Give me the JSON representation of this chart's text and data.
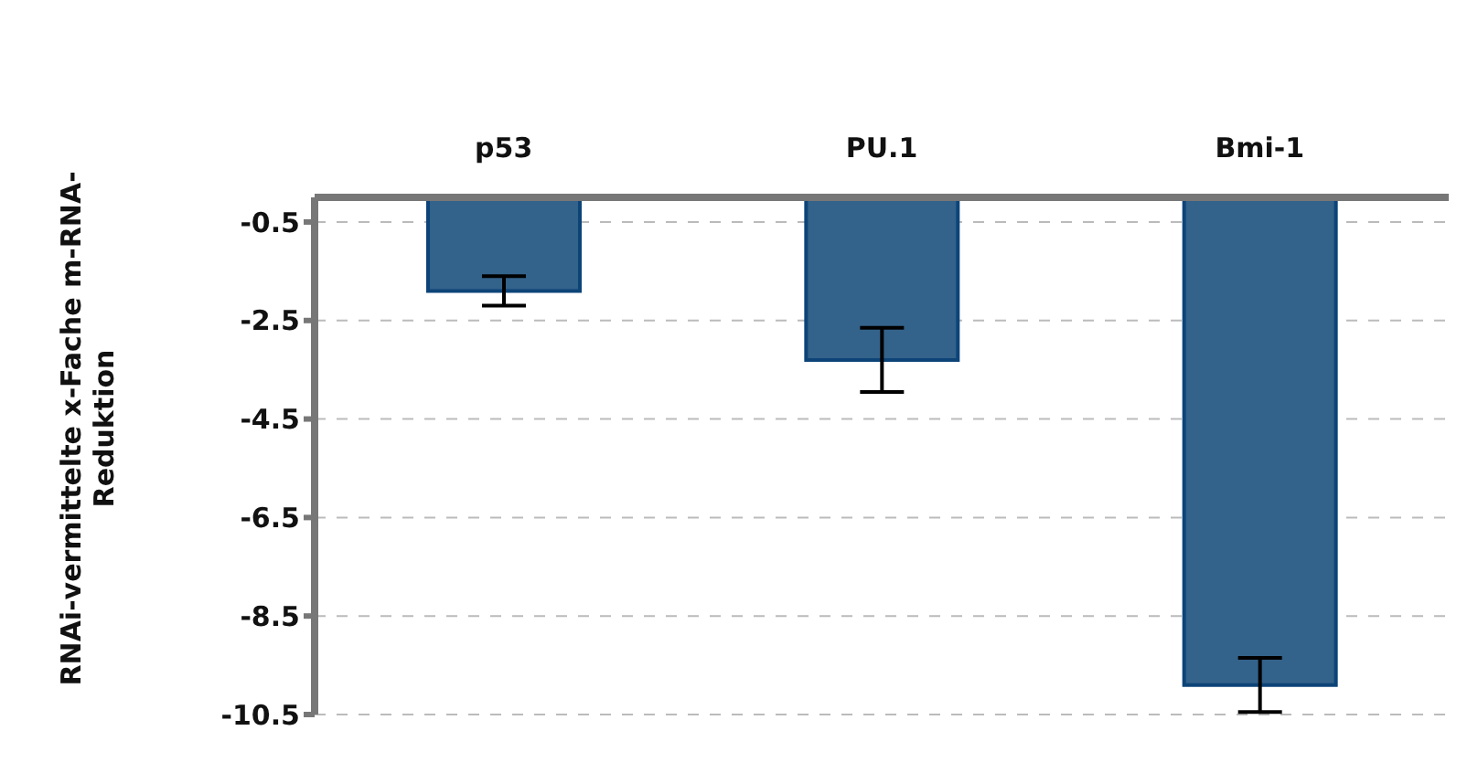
{
  "chart_data": {
    "type": "bar",
    "ylabel": "RNAi-vermittelte x-Fache m-RNA-Reduktion",
    "categories": [
      "p53",
      "PU.1",
      "Bmi-1"
    ],
    "values": [
      -1.9,
      -3.3,
      -9.9
    ],
    "errors": [
      0.3,
      0.65,
      0.55
    ],
    "color": "#33628a",
    "ylim": [
      -10.5,
      0
    ],
    "yticks": [
      -0.5,
      -2.5,
      -4.5,
      -6.5,
      -8.5,
      -10.5
    ],
    "grid": "y"
  }
}
